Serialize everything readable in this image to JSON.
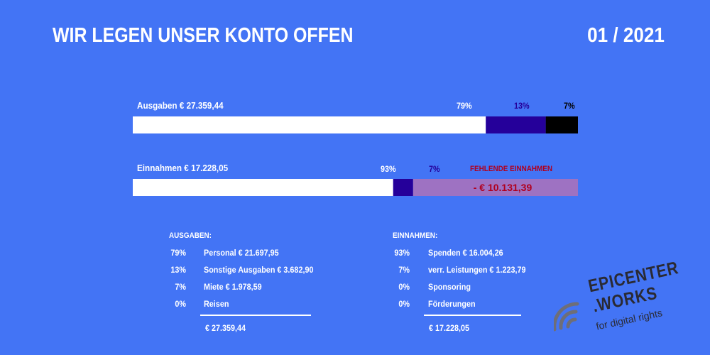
{
  "header": {
    "title": "WIR LEGEN UNSER KONTO OFFEN",
    "date": "01 / 2021"
  },
  "colors": {
    "background": "#4374f5",
    "white": "#ffffff",
    "navy": "#25009a",
    "black": "#000000",
    "missing_fill": "#9e72c2",
    "missing_text": "#b0001e"
  },
  "chart_data": [
    {
      "type": "bar",
      "label": "Ausgaben € 27.359,44",
      "total": 27359.44,
      "segments": [
        {
          "label": "79%",
          "value": 21697.95,
          "color": "#ffffff"
        },
        {
          "label": "13%",
          "value": 3682.9,
          "color": "#25009a"
        },
        {
          "label": "7%",
          "value": 1978.59,
          "color": "#000000"
        }
      ]
    },
    {
      "type": "bar",
      "label": "Einnahmen € 17.228,05",
      "total": 27359.44,
      "segments": [
        {
          "label": "93%",
          "value": 16004.26,
          "color": "#ffffff"
        },
        {
          "label": "7%",
          "value": 1223.79,
          "color": "#25009a"
        },
        {
          "label": "FEHLENDE EINNAHMEN",
          "value": 10131.39,
          "color": "#9e72c2",
          "inner_label": "-  € 10.131,39"
        }
      ]
    }
  ],
  "ausgaben": {
    "heading": "AUSGABEN:",
    "rows": [
      {
        "pct": "79%",
        "text": "Personal € 21.697,95"
      },
      {
        "pct": "13%",
        "text": "Sonstige Ausgaben € 3.682,90"
      },
      {
        "pct": "7%",
        "text": "Miete € 1.978,59"
      },
      {
        "pct": "0%",
        "text": "Reisen"
      }
    ],
    "total": "€ 27.359,44"
  },
  "einnahmen": {
    "heading": "EINNAHMEN:",
    "rows": [
      {
        "pct": "93%",
        "text": "Spenden € 16.004,26"
      },
      {
        "pct": "7%",
        "text": "verr. Leistungen € 1.223,79"
      },
      {
        "pct": "0%",
        "text": "Sponsoring"
      },
      {
        "pct": "0%",
        "text": "Förderungen"
      }
    ],
    "total": "€ 17.228,05"
  },
  "logo": {
    "line1": "EPICENTER",
    "line2": ".WORKS",
    "line3": "for digital rights",
    "icon": "signal-waves-icon"
  }
}
